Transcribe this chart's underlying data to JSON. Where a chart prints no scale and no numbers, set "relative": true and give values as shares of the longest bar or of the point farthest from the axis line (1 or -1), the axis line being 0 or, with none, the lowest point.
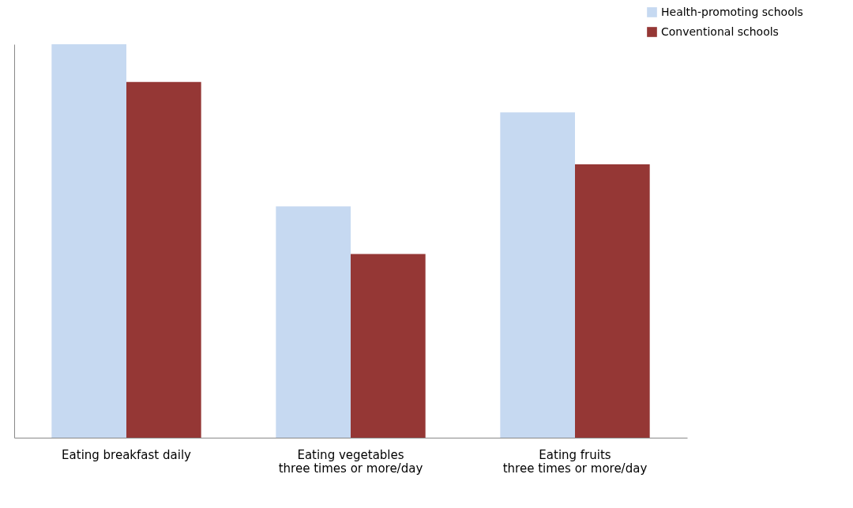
{
  "chart_data": {
    "type": "bar",
    "relative": true,
    "categories": [
      "Eating breakfast daily",
      "Eating vegetables\nthree times or more/day",
      "Eating fruits\nthree times or more/day"
    ],
    "series": [
      {
        "name": "Health-promoting schools",
        "color": "#c6d9f1",
        "values": [
          1,
          0.588,
          0.827
        ]
      },
      {
        "name": "Conventional schools",
        "color": "#953735",
        "values": [
          0.904,
          0.467,
          0.695
        ]
      }
    ],
    "legend": "top right",
    "grid": false
  }
}
